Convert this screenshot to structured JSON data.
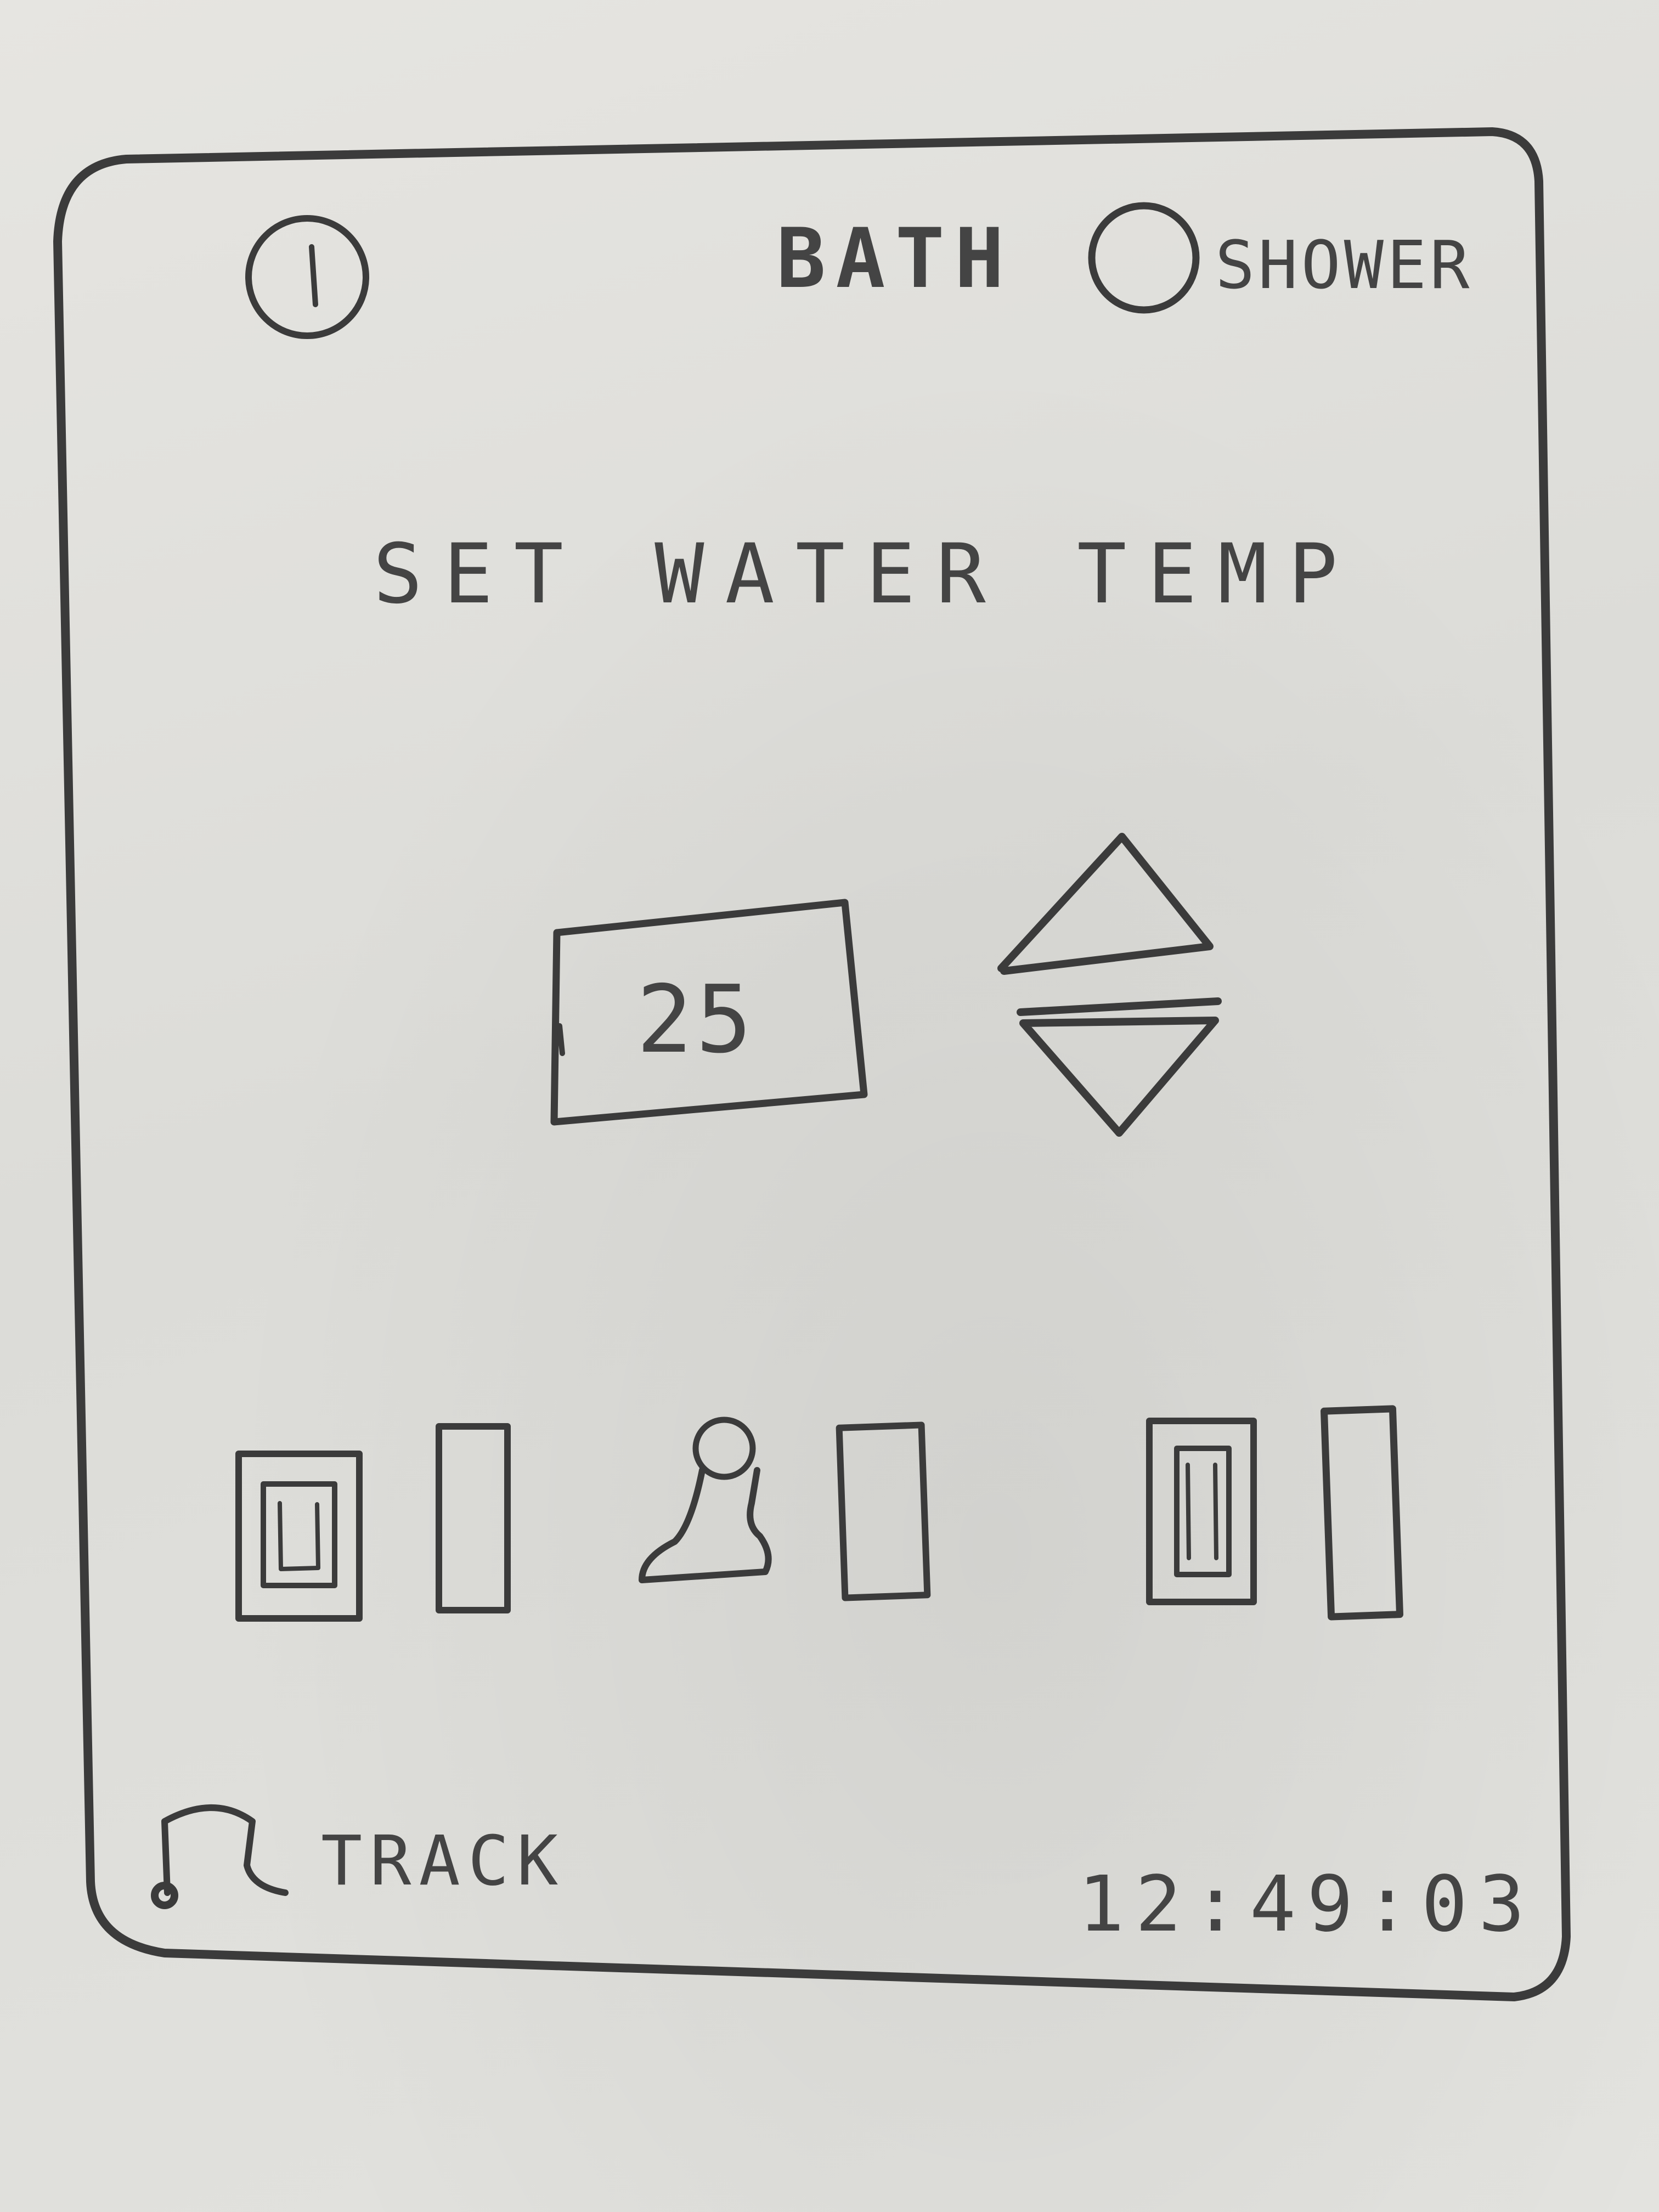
{
  "header": {
    "mode_bath_label": "BATH",
    "mode_shower_label": "SHOWER",
    "info_icon": "info-icon"
  },
  "main": {
    "title": "SET WATER TEMP",
    "temperature_value": "25",
    "increase_icon": "triangle-up-icon",
    "decrease_icon": "triangle-down-icon"
  },
  "controls": {
    "items": [
      {
        "name": "toggle-1",
        "icon": "switch-icon"
      },
      {
        "name": "slider-1",
        "icon": "bar-icon"
      },
      {
        "name": "shower-head",
        "icon": "shower-head-icon"
      },
      {
        "name": "slider-2",
        "icon": "bar-icon"
      },
      {
        "name": "toggle-2",
        "icon": "switch-icon"
      },
      {
        "name": "slider-3",
        "icon": "bar-icon"
      }
    ]
  },
  "footer": {
    "track_label": "TRACK",
    "music_icon": "music-note-icon",
    "clock": "12:49:03"
  },
  "colors": {
    "paper": "#dfdfdb",
    "pencil": "#3b3b3b"
  }
}
